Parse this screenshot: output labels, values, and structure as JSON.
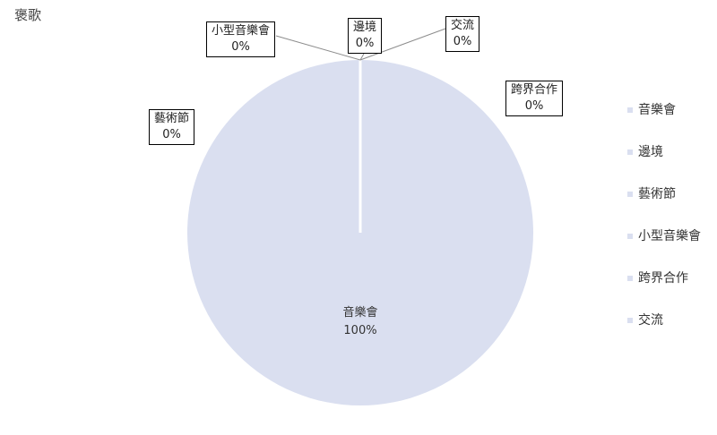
{
  "chart_data": {
    "type": "pie",
    "title": "褒歌",
    "categories": [
      "音樂會",
      "邊境",
      "藝術節",
      "小型音樂會",
      "跨界合作",
      "交流"
    ],
    "values": [
      100,
      0,
      0,
      0,
      0,
      0
    ],
    "value_labels": [
      "100%",
      "0%",
      "0%",
      "0%",
      "0%",
      "0%"
    ],
    "colors": [
      "#dadff0",
      "#dadff0",
      "#dadff0",
      "#dadff0",
      "#dadff0",
      "#dadff0"
    ],
    "legend_position": "right"
  }
}
